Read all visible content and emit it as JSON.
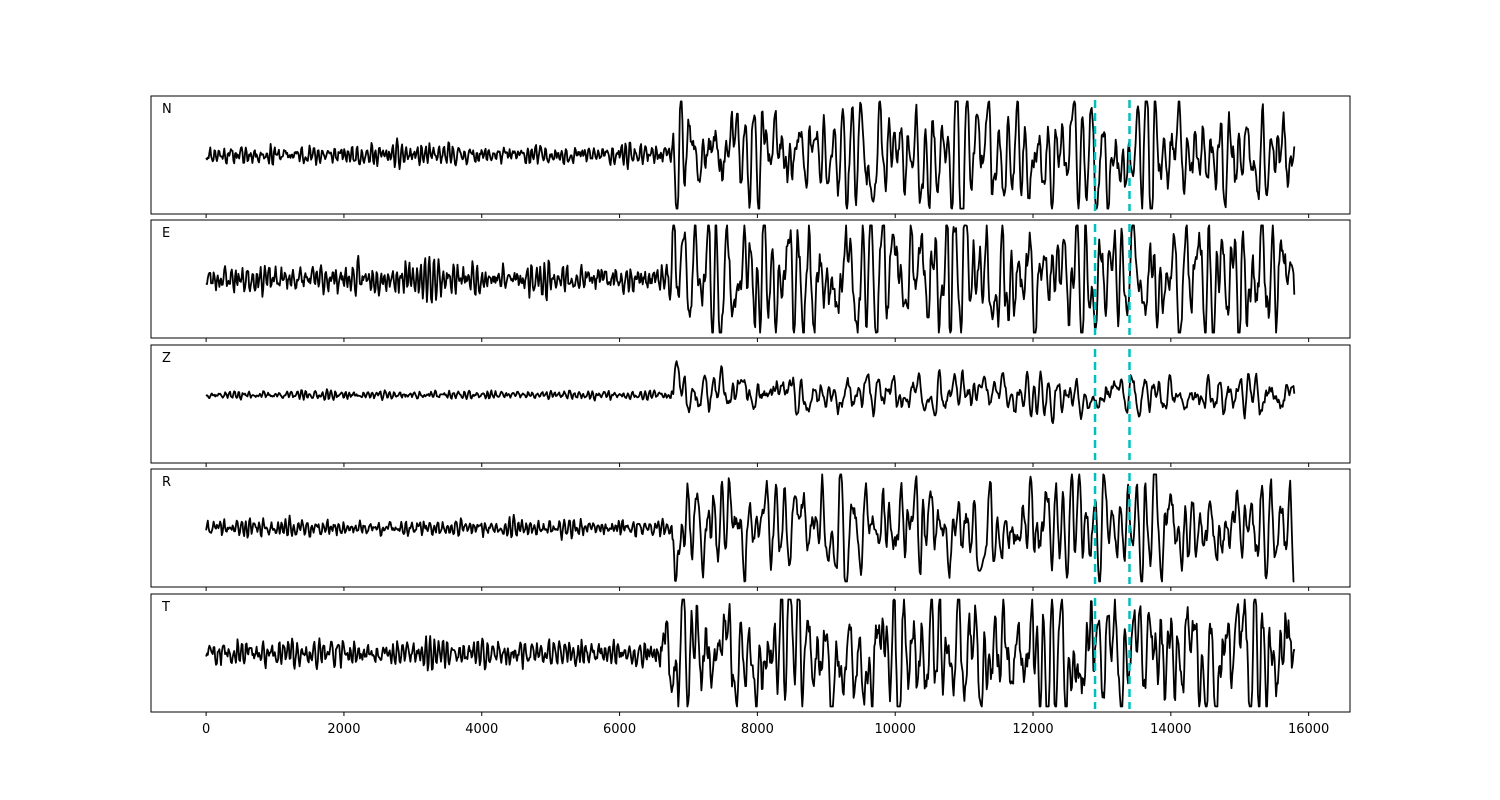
{
  "chart_data": {
    "type": "line",
    "title": "",
    "xlabel": "",
    "ylabel": "",
    "xlim": [
      -800,
      16600
    ],
    "n_samples": 15800,
    "x_ticks": [
      0,
      2000,
      4000,
      6000,
      8000,
      10000,
      12000,
      14000,
      16000
    ],
    "x_tick_labels": [
      "0",
      "2000",
      "4000",
      "6000",
      "8000",
      "10000",
      "12000",
      "14000",
      "16000"
    ],
    "vertical_markers": [
      12900,
      13400
    ],
    "marker_color": "#00bfbf",
    "trace_color": "#000000",
    "grid": false,
    "panels": [
      {
        "name": "N",
        "onset": 6750,
        "pre_amp": 0.12,
        "post_amp": 0.38,
        "peak": -0.95,
        "seed": 11,
        "bias": 0.0
      },
      {
        "name": "E",
        "onset": 6700,
        "pre_amp": 0.18,
        "post_amp": 0.45,
        "peak": 0.62,
        "seed": 23,
        "bias": 0.0
      },
      {
        "name": "Z",
        "onset": 6750,
        "pre_amp": 0.05,
        "post_amp": 0.16,
        "peak": 0.95,
        "seed": 37,
        "bias": -0.18
      },
      {
        "name": "R",
        "onset": 6750,
        "pre_amp": 0.1,
        "post_amp": 0.32,
        "peak": -0.95,
        "seed": 41,
        "bias": 0.0
      },
      {
        "name": "T",
        "onset": 6600,
        "pre_amp": 0.16,
        "post_amp": 0.48,
        "peak": 0.95,
        "seed": 59,
        "bias": 0.0
      }
    ]
  }
}
